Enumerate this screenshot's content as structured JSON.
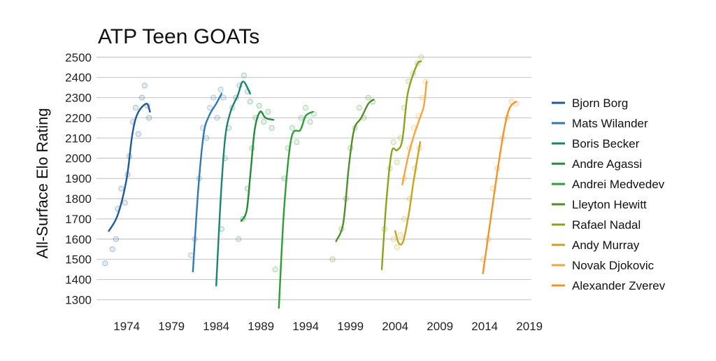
{
  "chart_data": {
    "type": "scatter",
    "title": "ATP Teen GOATs",
    "xlabel": "",
    "ylabel": "All-Surface Elo Rating",
    "xlim": [
      1970,
      2020
    ],
    "ylim": [
      1260,
      2520
    ],
    "xticks": [
      1974,
      1979,
      1984,
      1989,
      1994,
      1999,
      2004,
      2009,
      2014,
      2019
    ],
    "yticks": [
      1300,
      1400,
      1500,
      1600,
      1700,
      1800,
      1900,
      2000,
      2100,
      2200,
      2300,
      2400,
      2500
    ],
    "grid": "horizontal",
    "legend_position": "right",
    "series": [
      {
        "name": "Bjorn Borg",
        "color": "#1f5a96",
        "fit": [
          [
            1972.0,
            1640
          ],
          [
            1973.0,
            1720
          ],
          [
            1974.0,
            1900
          ],
          [
            1974.6,
            2110
          ],
          [
            1975.2,
            2220
          ],
          [
            1976.2,
            2270
          ],
          [
            1976.6,
            2230
          ]
        ],
        "points": [
          [
            1971.6,
            1480
          ],
          [
            1972.4,
            1550
          ],
          [
            1972.8,
            1600
          ],
          [
            1973.0,
            1750
          ],
          [
            1973.4,
            1850
          ],
          [
            1973.8,
            1780
          ],
          [
            1974.1,
            1920
          ],
          [
            1974.3,
            2010
          ],
          [
            1974.7,
            2180
          ],
          [
            1975.0,
            2250
          ],
          [
            1975.3,
            2120
          ],
          [
            1975.7,
            2300
          ],
          [
            1976.0,
            2360
          ],
          [
            1976.3,
            2260
          ],
          [
            1976.5,
            2200
          ]
        ]
      },
      {
        "name": "Mats Wilander",
        "color": "#2f79b5",
        "fit": [
          [
            1981.4,
            1440
          ],
          [
            1982.0,
            1850
          ],
          [
            1982.6,
            2120
          ],
          [
            1983.2,
            2210
          ],
          [
            1984.0,
            2270
          ],
          [
            1984.6,
            2320
          ]
        ],
        "points": [
          [
            1981.2,
            1520
          ],
          [
            1981.6,
            1600
          ],
          [
            1982.1,
            1900
          ],
          [
            1982.5,
            2150
          ],
          [
            1982.9,
            2100
          ],
          [
            1983.3,
            2250
          ],
          [
            1983.7,
            2300
          ],
          [
            1984.1,
            2200
          ],
          [
            1984.5,
            2340
          ],
          [
            1984.8,
            2300
          ]
        ]
      },
      {
        "name": "Boris Becker",
        "color": "#1a8470",
        "fit": [
          [
            1984.0,
            1370
          ],
          [
            1984.5,
            1800
          ],
          [
            1985.0,
            2100
          ],
          [
            1985.6,
            2230
          ],
          [
            1986.4,
            2310
          ],
          [
            1987.0,
            2380
          ],
          [
            1987.8,
            2320
          ]
        ],
        "points": [
          [
            1984.6,
            1650
          ],
          [
            1985.0,
            2000
          ],
          [
            1985.4,
            2150
          ],
          [
            1985.8,
            2250
          ],
          [
            1986.2,
            2300
          ],
          [
            1986.6,
            2360
          ],
          [
            1987.1,
            2410
          ],
          [
            1987.5,
            2330
          ],
          [
            1987.8,
            2280
          ]
        ]
      },
      {
        "name": "Andre Agassi",
        "color": "#238a3c",
        "fit": [
          [
            1986.8,
            1690
          ],
          [
            1987.4,
            1740
          ],
          [
            1987.8,
            1910
          ],
          [
            1988.3,
            2140
          ],
          [
            1988.9,
            2230
          ],
          [
            1989.5,
            2200
          ],
          [
            1990.4,
            2190
          ]
        ],
        "points": [
          [
            1986.5,
            1600
          ],
          [
            1987.0,
            1700
          ],
          [
            1987.5,
            1850
          ],
          [
            1988.0,
            2050
          ],
          [
            1988.4,
            2200
          ],
          [
            1988.8,
            2260
          ],
          [
            1989.3,
            2180
          ],
          [
            1989.8,
            2230
          ],
          [
            1990.2,
            2150
          ]
        ]
      },
      {
        "name": "Andrei Medvedev",
        "color": "#2d9d35",
        "fit": [
          [
            1991.0,
            1260
          ],
          [
            1991.6,
            1760
          ],
          [
            1992.4,
            2100
          ],
          [
            1993.4,
            2140
          ],
          [
            1994.0,
            2210
          ],
          [
            1994.8,
            2230
          ]
        ],
        "points": [
          [
            1990.6,
            1450
          ],
          [
            1991.6,
            1900
          ],
          [
            1992.0,
            2050
          ],
          [
            1992.5,
            2150
          ],
          [
            1993.0,
            2080
          ],
          [
            1993.5,
            2200
          ],
          [
            1994.0,
            2250
          ],
          [
            1994.5,
            2180
          ],
          [
            1994.9,
            2220
          ]
        ]
      },
      {
        "name": "Lleyton Hewitt",
        "color": "#4f8e2a",
        "fit": [
          [
            1997.4,
            1590
          ],
          [
            1998.2,
            1680
          ],
          [
            1998.8,
            1950
          ],
          [
            1999.4,
            2140
          ],
          [
            2000.2,
            2200
          ],
          [
            2001.0,
            2270
          ],
          [
            2001.6,
            2290
          ]
        ],
        "points": [
          [
            1997.0,
            1500
          ],
          [
            1998.0,
            1650
          ],
          [
            1998.5,
            1800
          ],
          [
            1999.0,
            2050
          ],
          [
            1999.5,
            2150
          ],
          [
            2000.0,
            2250
          ],
          [
            2000.5,
            2200
          ],
          [
            2001.0,
            2300
          ],
          [
            2001.5,
            2280
          ]
        ]
      },
      {
        "name": "Rafael Nadal",
        "color": "#8aa31f",
        "fit": [
          [
            2002.5,
            1450
          ],
          [
            2003.0,
            1780
          ],
          [
            2003.6,
            2030
          ],
          [
            2004.2,
            2040
          ],
          [
            2004.8,
            2090
          ],
          [
            2005.4,
            2320
          ],
          [
            2006.4,
            2460
          ],
          [
            2006.9,
            2480
          ]
        ],
        "points": [
          [
            2002.8,
            1650
          ],
          [
            2003.4,
            1950
          ],
          [
            2003.8,
            2080
          ],
          [
            2004.2,
            1980
          ],
          [
            2004.6,
            2100
          ],
          [
            2005.0,
            2250
          ],
          [
            2005.5,
            2380
          ],
          [
            2006.0,
            2420
          ],
          [
            2006.5,
            2470
          ],
          [
            2006.9,
            2500
          ]
        ]
      },
      {
        "name": "Andy Murray",
        "color": "#c8a41d",
        "fit": [
          [
            2004.0,
            1640
          ],
          [
            2004.4,
            1580
          ],
          [
            2004.9,
            1590
          ],
          [
            2005.5,
            1720
          ],
          [
            2006.1,
            1900
          ],
          [
            2006.8,
            2080
          ]
        ],
        "points": [
          [
            2003.8,
            1600
          ],
          [
            2004.2,
            1560
          ],
          [
            2004.6,
            1620
          ],
          [
            2005.0,
            1700
          ],
          [
            2005.6,
            1800
          ],
          [
            2006.2,
            1950
          ],
          [
            2006.7,
            2050
          ]
        ]
      },
      {
        "name": "Novak Djokovic",
        "color": "#f4a53c",
        "fit": [
          [
            2004.8,
            1870
          ],
          [
            2005.5,
            2020
          ],
          [
            2006.0,
            2100
          ],
          [
            2006.6,
            2180
          ],
          [
            2007.2,
            2260
          ],
          [
            2007.5,
            2380
          ]
        ],
        "points": [
          [
            2005.0,
            1900
          ],
          [
            2005.6,
            2050
          ],
          [
            2006.1,
            2150
          ],
          [
            2006.6,
            2210
          ],
          [
            2007.0,
            2300
          ],
          [
            2007.4,
            2380
          ]
        ]
      },
      {
        "name": "Alexander Zverev",
        "color": "#f39324",
        "fit": [
          [
            2013.8,
            1430
          ],
          [
            2014.6,
            1680
          ],
          [
            2015.4,
            1930
          ],
          [
            2016.2,
            2150
          ],
          [
            2016.8,
            2250
          ],
          [
            2017.5,
            2280
          ]
        ],
        "points": [
          [
            2013.8,
            1500
          ],
          [
            2014.4,
            1600
          ],
          [
            2014.9,
            1850
          ],
          [
            2015.4,
            1950
          ],
          [
            2016.0,
            2100
          ],
          [
            2016.5,
            2200
          ],
          [
            2017.0,
            2280
          ],
          [
            2017.5,
            2270
          ]
        ]
      }
    ]
  }
}
